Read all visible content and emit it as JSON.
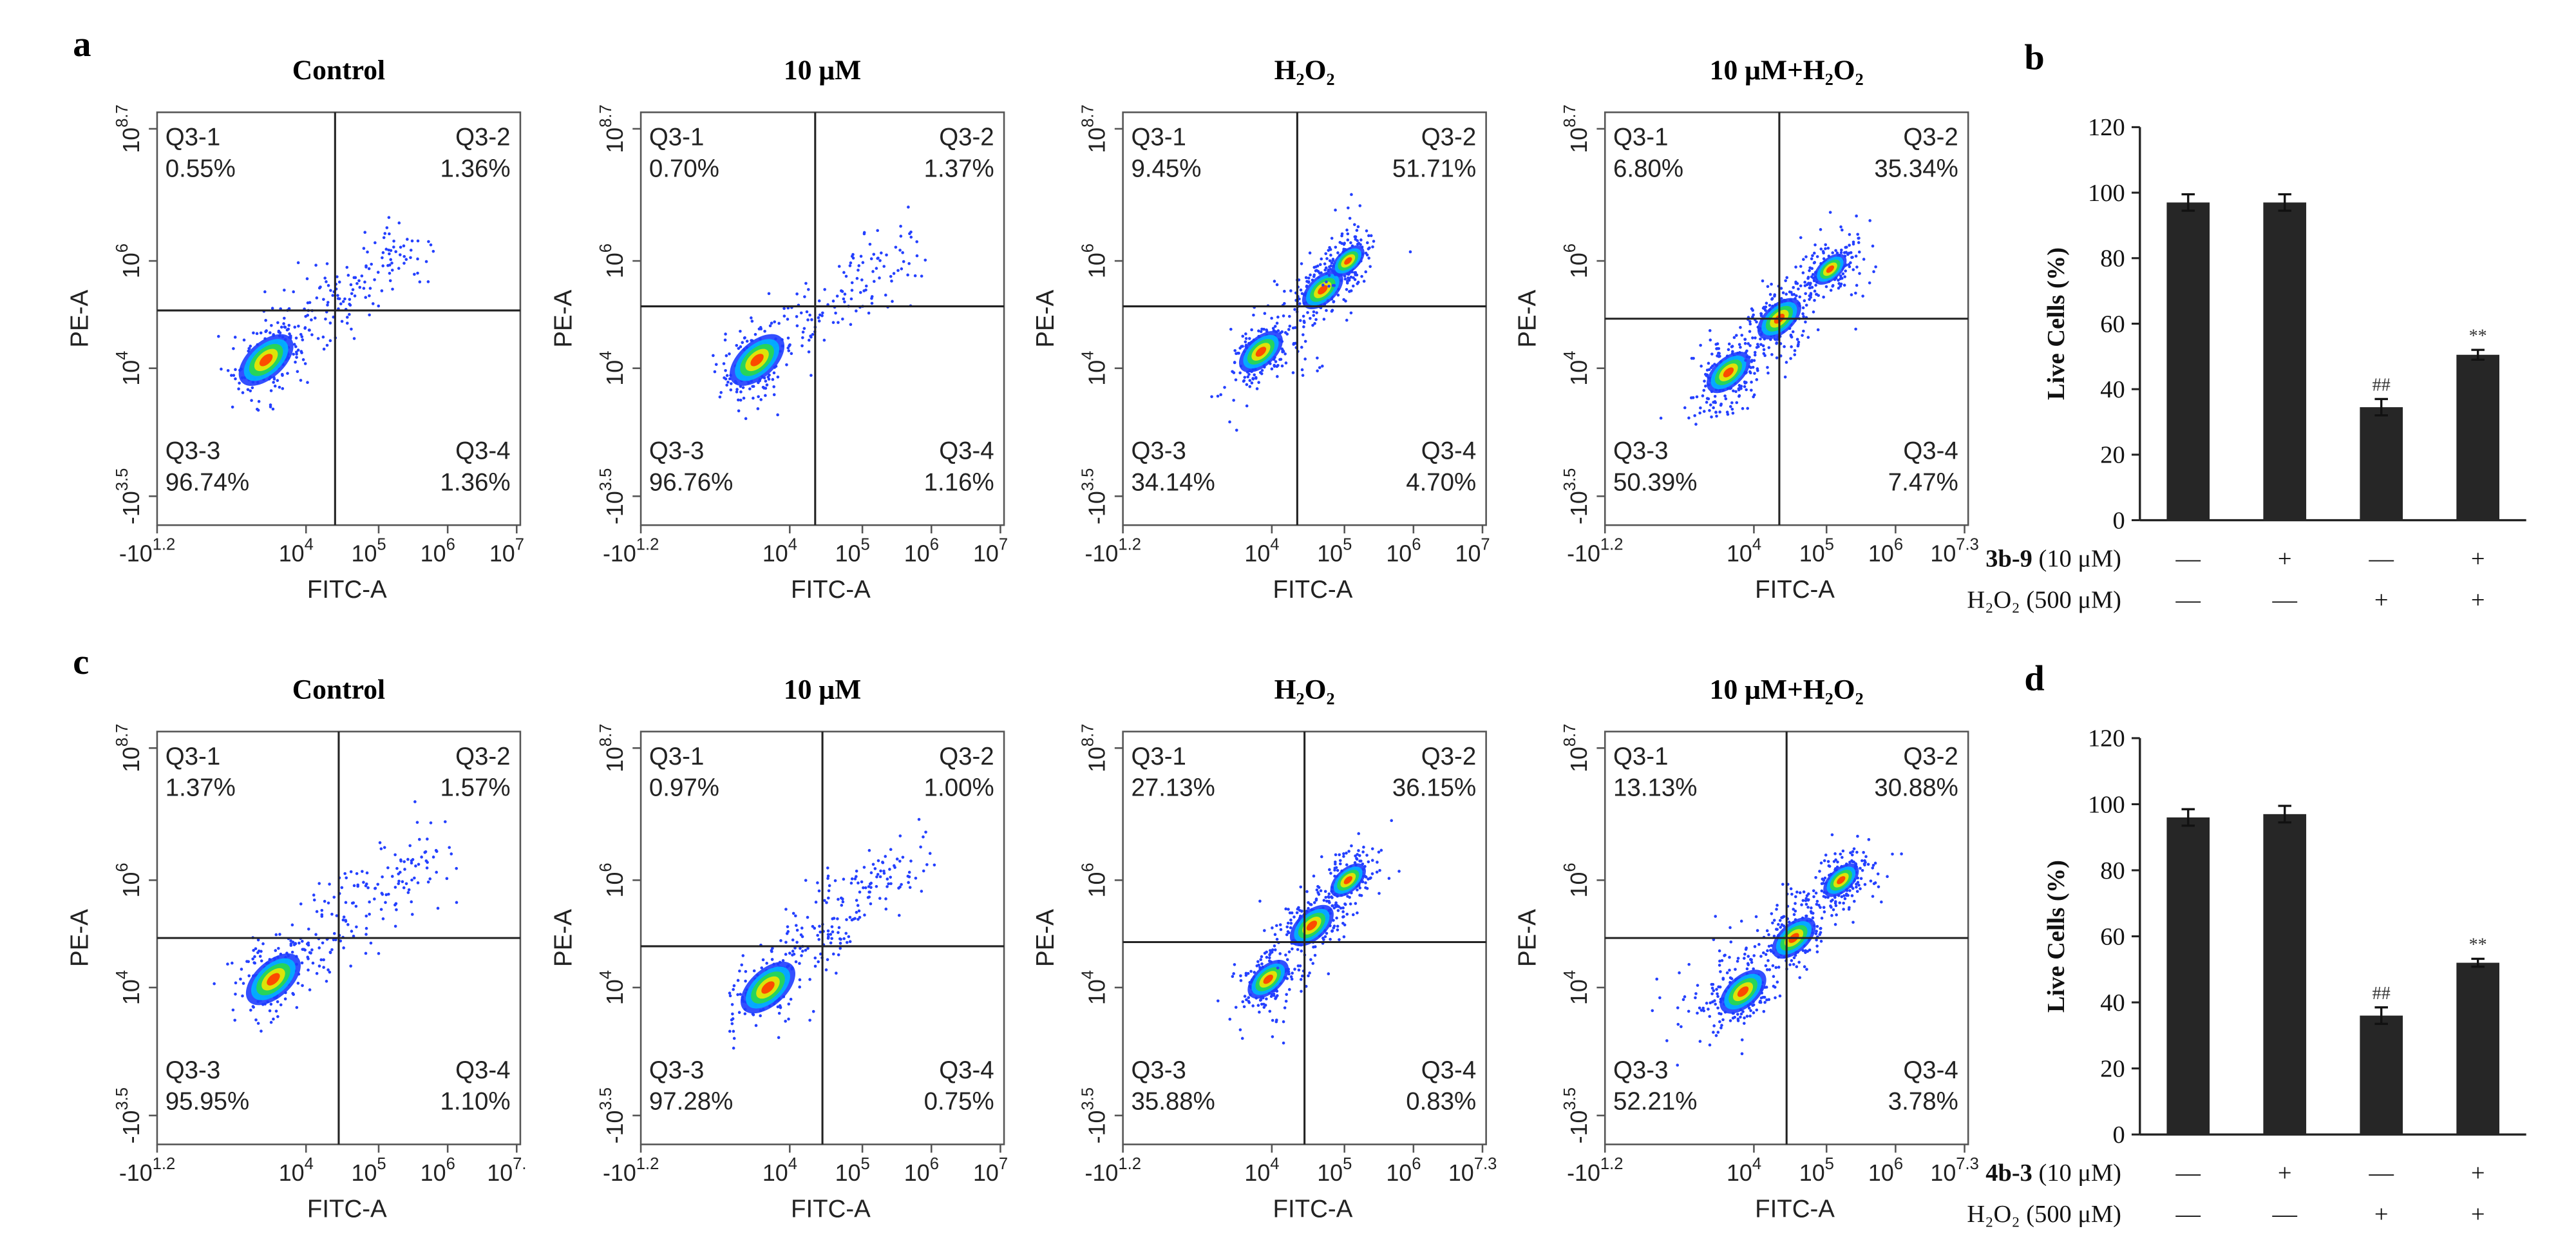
{
  "panel_labels": [
    "a",
    "b",
    "c",
    "d"
  ],
  "flow_rows": [
    {
      "plots": [
        {
          "title": "Control",
          "x_label": "FITC-A",
          "y_label": "PE-A",
          "quadrants": [
            {
              "name": "Q3-1",
              "percent": "0.55%"
            },
            {
              "name": "Q3-2",
              "percent": "1.36%"
            },
            {
              "name": "Q3-3",
              "percent": "96.74%"
            },
            {
              "name": "Q3-4",
              "percent": "1.36%"
            }
          ],
          "x_ticks": [
            {
              "base": "-10",
              "exp": "1.2"
            },
            {
              "base": "10",
              "exp": "4"
            },
            {
              "base": "10",
              "exp": "5"
            },
            {
              "base": "10",
              "exp": "6"
            },
            {
              "base": "10",
              "exp": "7"
            }
          ],
          "y_ticks": [
            {
              "base": "10",
              "exp": "8.7"
            },
            {
              "base": "10",
              "exp": "6"
            },
            {
              "base": "10",
              "exp": "4"
            },
            {
              "base": "-10",
              "exp": "3.5"
            }
          ]
        },
        {
          "title": "10 μM",
          "x_label": "FITC-A",
          "y_label": "PE-A",
          "quadrants": [
            {
              "name": "Q3-1",
              "percent": "0.70%"
            },
            {
              "name": "Q3-2",
              "percent": "1.37%"
            },
            {
              "name": "Q3-3",
              "percent": "96.76%"
            },
            {
              "name": "Q3-4",
              "percent": "1.16%"
            }
          ],
          "x_ticks": [
            {
              "base": "-10",
              "exp": "1.2"
            },
            {
              "base": "10",
              "exp": "4"
            },
            {
              "base": "10",
              "exp": "5"
            },
            {
              "base": "10",
              "exp": "6"
            },
            {
              "base": "10",
              "exp": "7"
            }
          ],
          "y_ticks": [
            {
              "base": "10",
              "exp": "8.7"
            },
            {
              "base": "10",
              "exp": "6"
            },
            {
              "base": "10",
              "exp": "4"
            },
            {
              "base": "-10",
              "exp": "3.5"
            }
          ]
        },
        {
          "title": "H₂O₂",
          "x_label": "FITC-A",
          "y_label": "PE-A",
          "quadrants": [
            {
              "name": "Q3-1",
              "percent": "9.45%"
            },
            {
              "name": "Q3-2",
              "percent": "51.71%"
            },
            {
              "name": "Q3-3",
              "percent": "34.14%"
            },
            {
              "name": "Q3-4",
              "percent": "4.70%"
            }
          ],
          "x_ticks": [
            {
              "base": "-10",
              "exp": "1.2"
            },
            {
              "base": "10",
              "exp": "4"
            },
            {
              "base": "10",
              "exp": "5"
            },
            {
              "base": "10",
              "exp": "6"
            },
            {
              "base": "10",
              "exp": "7"
            }
          ],
          "y_ticks": [
            {
              "base": "10",
              "exp": "8.7"
            },
            {
              "base": "10",
              "exp": "6"
            },
            {
              "base": "10",
              "exp": "4"
            },
            {
              "base": "-10",
              "exp": "3.5"
            }
          ]
        },
        {
          "title": "10 μM+H₂O₂",
          "x_label": "FITC-A",
          "y_label": "PE-A",
          "quadrants": [
            {
              "name": "Q3-1",
              "percent": "6.80%"
            },
            {
              "name": "Q3-2",
              "percent": "35.34%"
            },
            {
              "name": "Q3-3",
              "percent": "50.39%"
            },
            {
              "name": "Q3-4",
              "percent": "7.47%"
            }
          ],
          "x_ticks": [
            {
              "base": "-10",
              "exp": "1.2"
            },
            {
              "base": "10",
              "exp": "4"
            },
            {
              "base": "10",
              "exp": "5"
            },
            {
              "base": "10",
              "exp": "6"
            },
            {
              "base": "10",
              "exp": "7.3"
            }
          ],
          "y_ticks": [
            {
              "base": "10",
              "exp": "8.7"
            },
            {
              "base": "10",
              "exp": "6"
            },
            {
              "base": "10",
              "exp": "4"
            },
            {
              "base": "-10",
              "exp": "3.5"
            }
          ]
        }
      ]
    },
    {
      "plots": [
        {
          "title": "Control",
          "x_label": "FITC-A",
          "y_label": "PE-A",
          "quadrants": [
            {
              "name": "Q3-1",
              "percent": "1.37%"
            },
            {
              "name": "Q3-2",
              "percent": "1.57%"
            },
            {
              "name": "Q3-3",
              "percent": "95.95%"
            },
            {
              "name": "Q3-4",
              "percent": "1.10%"
            }
          ],
          "x_ticks": [
            {
              "base": "-10",
              "exp": "1.2"
            },
            {
              "base": "10",
              "exp": "4"
            },
            {
              "base": "10",
              "exp": "5"
            },
            {
              "base": "10",
              "exp": "6"
            },
            {
              "base": "10",
              "exp": "7."
            }
          ],
          "y_ticks": [
            {
              "base": "10",
              "exp": "8.7"
            },
            {
              "base": "10",
              "exp": "6"
            },
            {
              "base": "10",
              "exp": "4"
            },
            {
              "base": "-10",
              "exp": "3.5"
            }
          ]
        },
        {
          "title": "10 μM",
          "x_label": "FITC-A",
          "y_label": "PE-A",
          "quadrants": [
            {
              "name": "Q3-1",
              "percent": "0.97%"
            },
            {
              "name": "Q3-2",
              "percent": "1.00%"
            },
            {
              "name": "Q3-3",
              "percent": "97.28%"
            },
            {
              "name": "Q3-4",
              "percent": "0.75%"
            }
          ],
          "x_ticks": [
            {
              "base": "-10",
              "exp": "1.2"
            },
            {
              "base": "10",
              "exp": "4"
            },
            {
              "base": "10",
              "exp": "5"
            },
            {
              "base": "10",
              "exp": "6"
            },
            {
              "base": "10",
              "exp": "7"
            }
          ],
          "y_ticks": [
            {
              "base": "10",
              "exp": "8.7"
            },
            {
              "base": "10",
              "exp": "6"
            },
            {
              "base": "10",
              "exp": "4"
            },
            {
              "base": "-10",
              "exp": "3.5"
            }
          ]
        },
        {
          "title": "H₂O₂",
          "x_label": "FITC-A",
          "y_label": "PE-A",
          "quadrants": [
            {
              "name": "Q3-1",
              "percent": "27.13%"
            },
            {
              "name": "Q3-2",
              "percent": "36.15%"
            },
            {
              "name": "Q3-3",
              "percent": "35.88%"
            },
            {
              "name": "Q3-4",
              "percent": "0.83%"
            }
          ],
          "x_ticks": [
            {
              "base": "-10",
              "exp": "1.2"
            },
            {
              "base": "10",
              "exp": "4"
            },
            {
              "base": "10",
              "exp": "5"
            },
            {
              "base": "10",
              "exp": "6"
            },
            {
              "base": "10",
              "exp": "7.3"
            }
          ],
          "y_ticks": [
            {
              "base": "10",
              "exp": "8.7"
            },
            {
              "base": "10",
              "exp": "6"
            },
            {
              "base": "10",
              "exp": "4"
            },
            {
              "base": "-10",
              "exp": "3.5"
            }
          ]
        },
        {
          "title": "10 μM+H₂O₂",
          "x_label": "FITC-A",
          "y_label": "PE-A",
          "quadrants": [
            {
              "name": "Q3-1",
              "percent": "13.13%"
            },
            {
              "name": "Q3-2",
              "percent": "30.88%"
            },
            {
              "name": "Q3-3",
              "percent": "52.21%"
            },
            {
              "name": "Q3-4",
              "percent": "3.78%"
            }
          ],
          "x_ticks": [
            {
              "base": "-10",
              "exp": "1.2"
            },
            {
              "base": "10",
              "exp": "4"
            },
            {
              "base": "10",
              "exp": "5"
            },
            {
              "base": "10",
              "exp": "6"
            },
            {
              "base": "10",
              "exp": "7.3"
            }
          ],
          "y_ticks": [
            {
              "base": "10",
              "exp": "8.7"
            },
            {
              "base": "10",
              "exp": "6"
            },
            {
              "base": "10",
              "exp": "4"
            },
            {
              "base": "-10",
              "exp": "3.5"
            }
          ]
        }
      ]
    }
  ],
  "chart_data": [
    {
      "type": "bar",
      "ylabel": "Live Cells (%)",
      "color": "#262626",
      "categories": [
        null,
        null,
        null,
        null
      ],
      "values": [
        97,
        97,
        34.5,
        50.5
      ],
      "errors": [
        2.5,
        2.5,
        2.5,
        1.5
      ],
      "annotations": [
        null,
        null,
        "##",
        "**"
      ],
      "ylim": [
        0,
        120
      ],
      "yticks": [
        0,
        20,
        40,
        60,
        80,
        100,
        120
      ],
      "condition_rows": [
        {
          "label_bold": "3b-9",
          "label": " (10 μM)",
          "signs": [
            "—",
            "+",
            "—",
            "+"
          ]
        },
        {
          "label_bold": "",
          "label": "H₂O₂ (500 μM)",
          "signs": [
            "—",
            "—",
            "+",
            "+"
          ]
        }
      ]
    },
    {
      "type": "bar",
      "ylabel": "Live Cells (%)",
      "color": "#262626",
      "categories": [
        null,
        null,
        null,
        null
      ],
      "values": [
        96,
        97,
        36,
        52
      ],
      "errors": [
        2.5,
        2.5,
        2.5,
        1.2
      ],
      "annotations": [
        null,
        null,
        "##",
        "**"
      ],
      "ylim": [
        0,
        120
      ],
      "yticks": [
        0,
        20,
        40,
        60,
        80,
        100,
        120
      ],
      "condition_rows": [
        {
          "label_bold": "4b-3",
          "label": " (10 μM)",
          "signs": [
            "—",
            "+",
            "—",
            "+"
          ]
        },
        {
          "label_bold": "",
          "label": "H₂O₂ (500 μM)",
          "signs": [
            "—",
            "—",
            "+",
            "+"
          ]
        }
      ]
    }
  ]
}
